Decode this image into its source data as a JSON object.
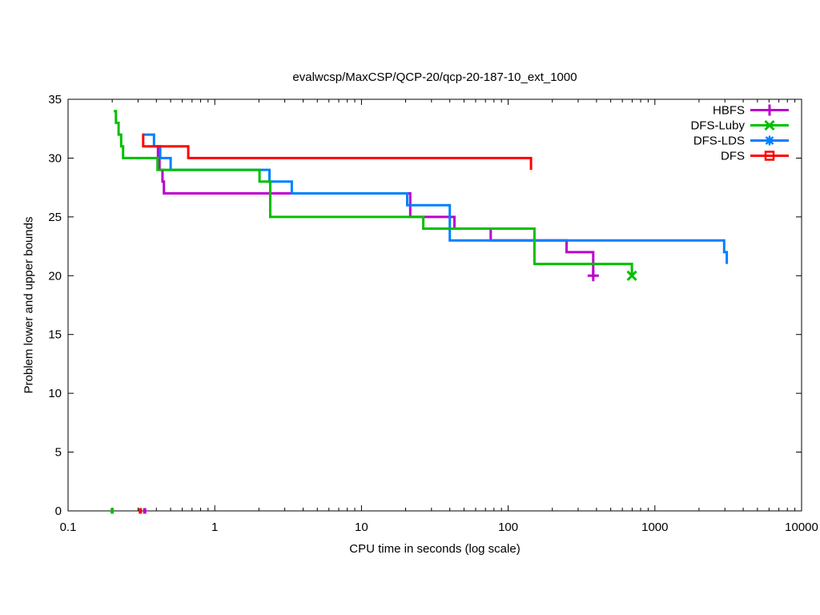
{
  "chart_data": {
    "type": "line",
    "title": "evalwcsp/MaxCSP/QCP-20/qcp-20-187-10_ext_1000",
    "xlabel": "CPU time in seconds (log scale)",
    "ylabel": "Problem lower and upper bounds",
    "x_scale": "log10",
    "xlim": [
      0.1,
      10000
    ],
    "ylim": [
      0,
      35
    ],
    "x_ticks": [
      0.1,
      1,
      10,
      100,
      1000,
      10000
    ],
    "x_tick_labels": [
      "0.1",
      "1",
      "10",
      "100",
      "1000",
      "10000"
    ],
    "y_ticks": [
      0,
      5,
      10,
      15,
      20,
      25,
      30,
      35
    ],
    "grid": false,
    "legend_position": "top-right-inside",
    "axis_color": "#000000",
    "text_color": "#000000",
    "line_width": 3,
    "series": [
      {
        "name": "HBFS",
        "color": "#bb00cc",
        "marker": "plus",
        "style": "steps",
        "draw_order": 1,
        "end_marker": true,
        "baseline_mark": 0.333,
        "points": [
          [
            0.4,
            31
          ],
          [
            0.41,
            30
          ],
          [
            0.42,
            29
          ],
          [
            0.44,
            28
          ],
          [
            0.45,
            27
          ],
          [
            21.5,
            25
          ],
          [
            43,
            24
          ],
          [
            76,
            23
          ],
          [
            250,
            22
          ],
          [
            380,
            20
          ]
        ]
      },
      {
        "name": "DFS-Luby",
        "color": "#00c000",
        "marker": "cross",
        "style": "steps",
        "draw_order": 3,
        "end_marker": true,
        "baseline_mark": 0.2,
        "points": [
          [
            0.205,
            34
          ],
          [
            0.212,
            33
          ],
          [
            0.221,
            32
          ],
          [
            0.23,
            31
          ],
          [
            0.237,
            30
          ],
          [
            0.407,
            29
          ],
          [
            2.02,
            28
          ],
          [
            2.39,
            25
          ],
          [
            26.4,
            24
          ],
          [
            151,
            21
          ],
          [
            697,
            20
          ]
        ]
      },
      {
        "name": "DFS-LDS",
        "color": "#0080ff",
        "marker": "asterisk",
        "style": "steps",
        "draw_order": 2,
        "end_marker": false,
        "baseline_mark": null,
        "points": [
          [
            0.33,
            32
          ],
          [
            0.385,
            31
          ],
          [
            0.425,
            30
          ],
          [
            0.5,
            29
          ],
          [
            2.36,
            28
          ],
          [
            3.35,
            27
          ],
          [
            20.5,
            26
          ],
          [
            40,
            23
          ],
          [
            2965,
            22
          ],
          [
            3092,
            21
          ]
        ]
      },
      {
        "name": "DFS",
        "color": "#ff0000",
        "marker": "square",
        "style": "steps",
        "draw_order": 4,
        "end_marker": false,
        "baseline_mark": 0.311,
        "points": [
          [
            0.32,
            32
          ],
          [
            0.325,
            31
          ],
          [
            0.66,
            30
          ],
          [
            143,
            29
          ]
        ]
      }
    ]
  }
}
